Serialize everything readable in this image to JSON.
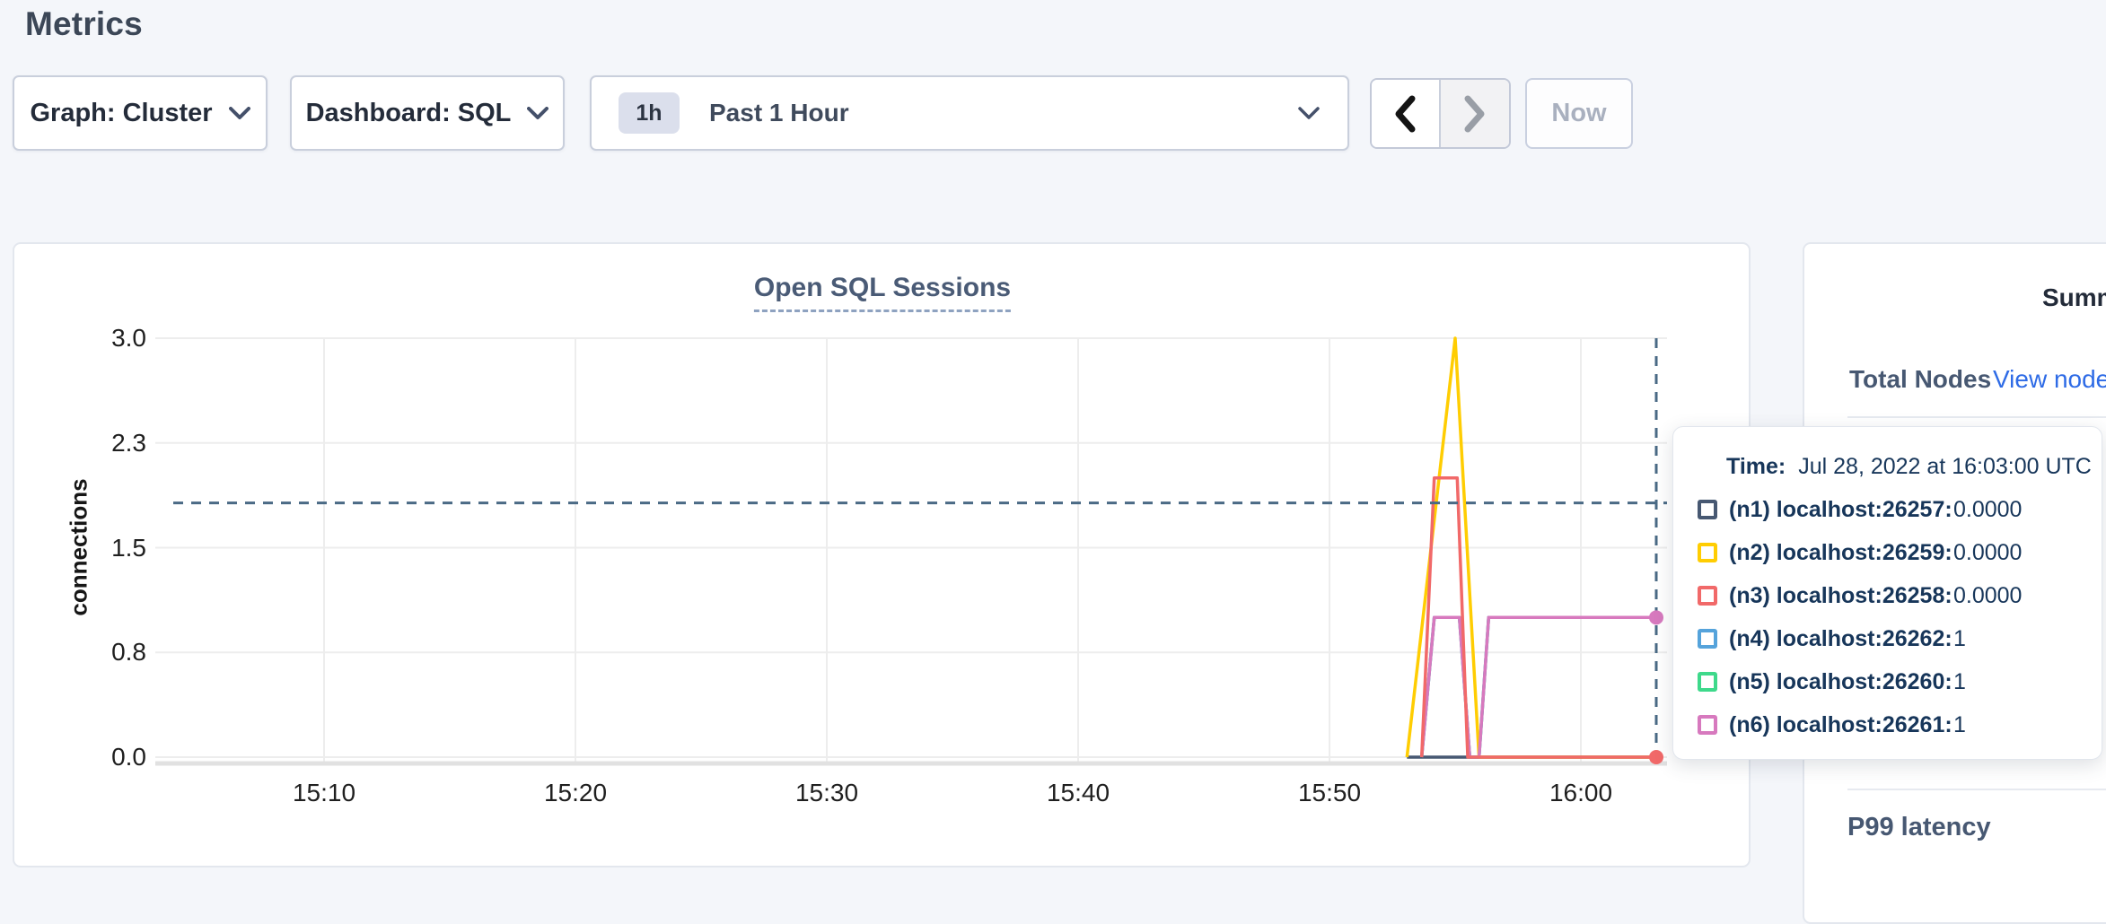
{
  "page": {
    "title": "Metrics"
  },
  "toolbar": {
    "graph_dropdown_label": "Graph: Cluster",
    "dashboard_dropdown_label": "Dashboard: SQL",
    "time_range": {
      "badge": "1h",
      "label": "Past 1 Hour"
    },
    "now_button_label": "Now"
  },
  "sidebar": {
    "heading": "Summary",
    "total_nodes_label": "Total Nodes",
    "view_nodes_link": "View nodes",
    "p99_heading": "P99 latency"
  },
  "tooltip": {
    "time_label": "Time:",
    "time_value": "Jul 28, 2022 at 16:03:00 UTC",
    "rows": [
      {
        "id": "n1",
        "label": "(n1) localhost:26257:",
        "value": "0.0000",
        "color": "#475872"
      },
      {
        "id": "n2",
        "label": "(n2) localhost:26259:",
        "value": "0.0000",
        "color": "#ffcd02"
      },
      {
        "id": "n3",
        "label": "(n3) localhost:26258:",
        "value": "0.0000",
        "color": "#f16969"
      },
      {
        "id": "n4",
        "label": "(n4) localhost:26262:",
        "value": "1",
        "color": "#55a3db"
      },
      {
        "id": "n5",
        "label": "(n5) localhost:26260:",
        "value": "1",
        "color": "#3ed98b"
      },
      {
        "id": "n6",
        "label": "(n6) localhost:26261:",
        "value": "1",
        "color": "#d779be"
      }
    ]
  },
  "chart_data": {
    "type": "line",
    "title": "Open SQL Sessions",
    "xlabel": "",
    "ylabel": "connections",
    "ylim": [
      0,
      3
    ],
    "x_range": [
      "15:03",
      "16:04"
    ],
    "grid": true,
    "legend_position": "tooltip",
    "y_ticks": [
      {
        "v": 0,
        "label": "0.0"
      },
      {
        "v": 0.75,
        "label": "0.8"
      },
      {
        "v": 1.5,
        "label": "1.5"
      },
      {
        "v": 2.25,
        "label": "2.3"
      },
      {
        "v": 3,
        "label": "3.0"
      }
    ],
    "x_ticks": [
      {
        "t": "15:10",
        "label": "15:10"
      },
      {
        "t": "15:20",
        "label": "15:20"
      },
      {
        "t": "15:30",
        "label": "15:30"
      },
      {
        "t": "15:40",
        "label": "15:40"
      },
      {
        "t": "15:50",
        "label": "15:50"
      },
      {
        "t": "16:00",
        "label": "16:00"
      }
    ],
    "series": [
      {
        "id": "n1",
        "name": "(n1) localhost:26257",
        "color": "#475872",
        "end_dot": false,
        "points": [
          [
            "15:53:05",
            0
          ],
          [
            "16:03:00",
            0
          ]
        ]
      },
      {
        "id": "n2",
        "name": "(n2) localhost:26259",
        "color": "#ffcd02",
        "end_dot": false,
        "points": [
          [
            "15:53:05",
            0
          ],
          [
            "15:55:00",
            3
          ],
          [
            "15:55:57",
            0
          ],
          [
            "16:03:00",
            0
          ]
        ]
      },
      {
        "id": "n3",
        "name": "(n3) localhost:26258",
        "color": "#f16969",
        "end_dot": true,
        "points": [
          [
            "15:53:40",
            0
          ],
          [
            "15:54:10",
            2
          ],
          [
            "15:55:05",
            2
          ],
          [
            "15:55:30",
            0
          ],
          [
            "16:03:00",
            0
          ]
        ]
      },
      {
        "id": "n4",
        "name": "(n4) localhost:26262",
        "color": "#55a3db",
        "end_dot": false,
        "points": [
          [
            "15:53:40",
            0
          ],
          [
            "15:54:10",
            1
          ],
          [
            "15:55:10",
            1
          ],
          [
            "15:55:35",
            0
          ],
          [
            "15:55:57",
            0
          ],
          [
            "15:56:20",
            1
          ],
          [
            "16:03:00",
            1
          ]
        ]
      },
      {
        "id": "n5",
        "name": "(n5) localhost:26260",
        "color": "#3ed98b",
        "end_dot": false,
        "points": [
          [
            "15:53:40",
            0
          ],
          [
            "15:54:10",
            1
          ],
          [
            "15:55:10",
            1
          ],
          [
            "15:55:35",
            0
          ],
          [
            "15:55:57",
            0
          ],
          [
            "15:56:20",
            1
          ],
          [
            "16:03:00",
            1
          ]
        ]
      },
      {
        "id": "n6",
        "name": "(n6) localhost:26261",
        "color": "#d779be",
        "end_dot": true,
        "points": [
          [
            "15:53:40",
            0
          ],
          [
            "15:54:10",
            1
          ],
          [
            "15:55:10",
            1
          ],
          [
            "15:55:35",
            0
          ],
          [
            "15:55:57",
            0
          ],
          [
            "15:56:20",
            1
          ],
          [
            "16:03:00",
            1
          ]
        ]
      }
    ],
    "crosshair": {
      "time": "16:03:00",
      "hover_value": 1.82
    }
  }
}
